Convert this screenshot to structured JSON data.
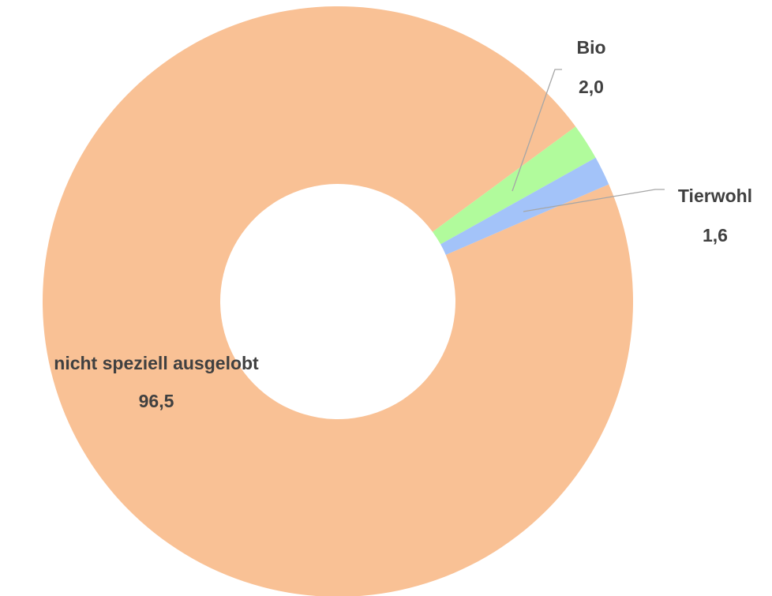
{
  "chart_data": {
    "type": "donut",
    "categories": [
      "nicht speziell ausgelobt",
      "Bio",
      "Tierwohl"
    ],
    "values": [
      96.5,
      2.0,
      1.6
    ],
    "value_labels": [
      "96,5",
      "2,0",
      "1,6"
    ],
    "colors": [
      "#f9c195",
      "#b1fb9c",
      "#a3c3f9"
    ]
  }
}
